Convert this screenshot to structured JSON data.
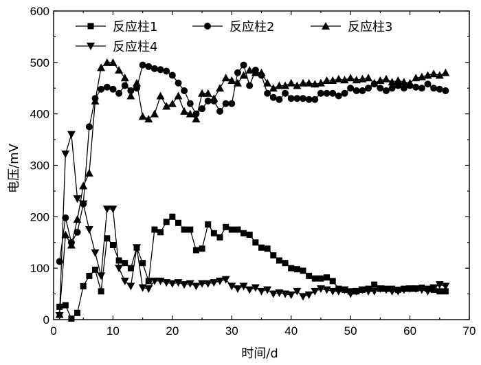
{
  "chart_data": {
    "type": "line",
    "xlabel": "时间/d",
    "ylabel": "电压/mV",
    "xlim": [
      0,
      70
    ],
    "ylim": [
      0,
      600
    ],
    "xticks": [
      "0",
      "10",
      "20",
      "30",
      "40",
      "50",
      "60",
      "70"
    ],
    "yticks": [
      "0",
      "100",
      "200",
      "300",
      "400",
      "500",
      "600"
    ],
    "legend_position": "top",
    "grid": false,
    "series": [
      {
        "name": "反应柱1",
        "marker": "square",
        "x": [
          1,
          2,
          3,
          4,
          5,
          6,
          7,
          8,
          9,
          10,
          11,
          12,
          13,
          14,
          15,
          16,
          17,
          18,
          19,
          20,
          21,
          22,
          23,
          24,
          25,
          26,
          27,
          28,
          29,
          30,
          31,
          32,
          33,
          34,
          35,
          36,
          37,
          38,
          39,
          40,
          41,
          42,
          43,
          44,
          45,
          46,
          47,
          48,
          49,
          50,
          51,
          52,
          53,
          54,
          55,
          56,
          57,
          58,
          59,
          60,
          61,
          62,
          63,
          64,
          65,
          66
        ],
        "y": [
          25,
          28,
          2,
          13,
          65,
          85,
          97,
          55,
          158,
          145,
          115,
          110,
          100,
          140,
          110,
          75,
          175,
          170,
          190,
          200,
          188,
          175,
          175,
          135,
          138,
          185,
          168,
          160,
          180,
          175,
          175,
          168,
          165,
          150,
          140,
          138,
          125,
          115,
          110,
          100,
          98,
          95,
          85,
          80,
          80,
          82,
          75,
          60,
          58,
          55,
          55,
          58,
          60,
          68,
          60,
          60,
          60,
          58,
          60,
          60,
          60,
          62,
          60,
          58,
          55,
          55
        ]
      },
      {
        "name": "反应柱2",
        "marker": "circle",
        "x": [
          1,
          2,
          3,
          4,
          5,
          6,
          7,
          8,
          9,
          10,
          11,
          12,
          13,
          14,
          15,
          16,
          17,
          18,
          19,
          20,
          21,
          22,
          23,
          24,
          25,
          26,
          27,
          28,
          29,
          30,
          31,
          32,
          33,
          34,
          35,
          36,
          37,
          38,
          39,
          40,
          41,
          42,
          43,
          44,
          45,
          46,
          47,
          48,
          49,
          50,
          51,
          52,
          53,
          54,
          55,
          56,
          57,
          58,
          59,
          60,
          61,
          62,
          63,
          64,
          65,
          66
        ],
        "y": [
          113,
          198,
          150,
          170,
          225,
          375,
          430,
          448,
          452,
          448,
          440,
          455,
          445,
          450,
          495,
          492,
          488,
          486,
          483,
          475,
          460,
          445,
          420,
          400,
          410,
          425,
          425,
          405,
          420,
          420,
          480,
          495,
          455,
          485,
          475,
          440,
          432,
          428,
          440,
          430,
          430,
          430,
          428,
          428,
          440,
          440,
          440,
          435,
          440,
          450,
          445,
          445,
          450,
          458,
          450,
          445,
          450,
          455,
          450,
          455,
          452,
          450,
          458,
          450,
          448,
          445
        ]
      },
      {
        "name": "反应柱3",
        "marker": "triangle-up",
        "x": [
          1,
          2,
          3,
          4,
          5,
          6,
          7,
          8,
          9,
          10,
          11,
          12,
          13,
          14,
          15,
          16,
          17,
          18,
          19,
          20,
          21,
          22,
          23,
          24,
          25,
          26,
          27,
          28,
          29,
          30,
          31,
          32,
          33,
          34,
          35,
          36,
          37,
          38,
          39,
          40,
          41,
          42,
          43,
          44,
          45,
          46,
          47,
          48,
          49,
          50,
          51,
          52,
          53,
          54,
          55,
          56,
          57,
          58,
          59,
          60,
          61,
          62,
          63,
          64,
          65,
          66
        ],
        "y": [
          10,
          165,
          145,
          195,
          260,
          285,
          425,
          490,
          500,
          500,
          485,
          470,
          435,
          460,
          395,
          390,
          400,
          435,
          415,
          420,
          435,
          405,
          400,
          390,
          440,
          440,
          430,
          450,
          470,
          465,
          460,
          475,
          485,
          480,
          480,
          460,
          450,
          455,
          455,
          460,
          455,
          460,
          460,
          458,
          460,
          465,
          465,
          468,
          466,
          470,
          466,
          468,
          470,
          460,
          465,
          468,
          462,
          465,
          462,
          460,
          470,
          472,
          475,
          478,
          475,
          480
        ]
      },
      {
        "name": "反应柱4",
        "marker": "triangle-down",
        "x": [
          1,
          2,
          3,
          4,
          5,
          6,
          7,
          8,
          9,
          10,
          11,
          12,
          13,
          14,
          15,
          16,
          17,
          18,
          19,
          20,
          21,
          22,
          23,
          24,
          25,
          26,
          27,
          28,
          29,
          30,
          31,
          32,
          33,
          34,
          35,
          36,
          37,
          38,
          39,
          40,
          41,
          42,
          43,
          44,
          45,
          46,
          47,
          48,
          49,
          50,
          51,
          52,
          53,
          54,
          55,
          56,
          57,
          58,
          59,
          60,
          61,
          62,
          63,
          64,
          65,
          66
        ],
        "y": [
          8,
          322,
          360,
          235,
          225,
          175,
          130,
          85,
          215,
          215,
          100,
          75,
          65,
          140,
          62,
          60,
          75,
          75,
          72,
          70,
          72,
          68,
          70,
          65,
          70,
          70,
          72,
          75,
          78,
          65,
          60,
          65,
          58,
          62,
          55,
          58,
          50,
          52,
          50,
          48,
          55,
          45,
          48,
          55,
          60,
          58,
          55,
          55,
          58,
          50,
          55,
          58,
          55,
          55,
          60,
          58,
          55,
          55,
          58,
          60,
          60,
          58,
          55,
          62,
          68,
          65
        ]
      }
    ]
  }
}
